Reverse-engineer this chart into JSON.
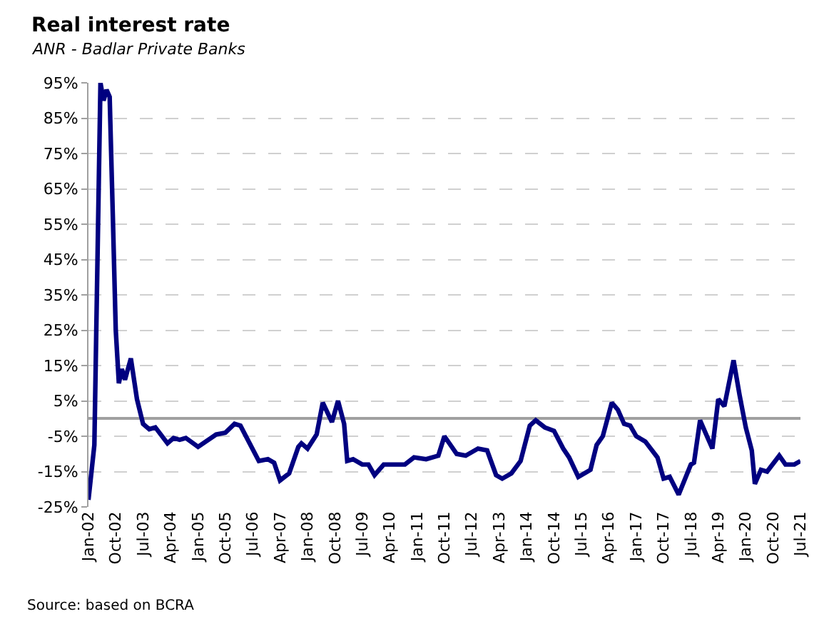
{
  "chart_data": {
    "type": "line",
    "title": "Real interest rate",
    "subtitle": "ANR - Badlar Private Banks",
    "annotations": [
      "Source: based on BCRA"
    ],
    "x": [
      "2002-01",
      "2002-03",
      "2002-05",
      "2002-06",
      "2002-07",
      "2002-08",
      "2002-09",
      "2002-10",
      "2002-11",
      "2002-12",
      "2003-01",
      "2003-03",
      "2003-05",
      "2003-07",
      "2003-09",
      "2003-11",
      "2004-03",
      "2004-05",
      "2004-07",
      "2004-09",
      "2005-01",
      "2005-07",
      "2005-10",
      "2006-01",
      "2006-03",
      "2006-06",
      "2006-09",
      "2006-12",
      "2007-02",
      "2007-04",
      "2007-07",
      "2007-10",
      "2007-11",
      "2008-01",
      "2008-04",
      "2008-06",
      "2008-09",
      "2008-11",
      "2009-01",
      "2009-02",
      "2009-04",
      "2009-07",
      "2009-09",
      "2009-11",
      "2010-02",
      "2010-06",
      "2010-09",
      "2010-12",
      "2011-04",
      "2011-08",
      "2011-10",
      "2012-02",
      "2012-05",
      "2012-09",
      "2012-12",
      "2013-03",
      "2013-05",
      "2013-08",
      "2013-11",
      "2014-02",
      "2014-04",
      "2014-07",
      "2014-10",
      "2015-01",
      "2015-03",
      "2015-06",
      "2015-09",
      "2015-10",
      "2015-12",
      "2016-02",
      "2016-05",
      "2016-07",
      "2016-09",
      "2016-11",
      "2017-01",
      "2017-04",
      "2017-08",
      "2017-10",
      "2017-12",
      "2018-03",
      "2018-07",
      "2018-08",
      "2018-10",
      "2018-12",
      "2019-02",
      "2019-04",
      "2019-06",
      "2019-09",
      "2019-11",
      "2020-01",
      "2020-03",
      "2020-04",
      "2020-06",
      "2020-08",
      "2020-12",
      "2021-02",
      "2021-05",
      "2021-07"
    ],
    "series": [
      {
        "color": "#000080",
        "values": [
          -23,
          -7.5,
          95,
          90,
          93,
          91,
          58,
          25,
          10,
          14,
          11,
          17,
          5.5,
          -1.5,
          -3,
          -2.5,
          -7,
          -5.5,
          -6,
          -5.5,
          -8,
          -4.5,
          -4,
          -1.5,
          -2,
          -7,
          -12,
          -11.5,
          -12.5,
          -17.5,
          -15.5,
          -8,
          -7,
          -8.5,
          -4.5,
          4.5,
          -1,
          5,
          -1.5,
          -12,
          -11.5,
          -13,
          -13,
          -16,
          -13,
          -13,
          -13,
          -11,
          -11.5,
          -10.5,
          -5,
          -10,
          -10.5,
          -8.5,
          -9,
          -16,
          -17,
          -15.5,
          -12,
          -2,
          -0.5,
          -2.5,
          -3.5,
          -8.5,
          -11,
          -16.5,
          -15,
          -14.5,
          -7.5,
          -5,
          4.5,
          2.5,
          -1.5,
          -2,
          -5,
          -6.5,
          -11,
          -17,
          -16.5,
          -21.5,
          -13,
          -12.5,
          -0.5,
          -4.5,
          -8.5,
          5.5,
          3.5,
          16.5,
          6.5,
          -2.5,
          -9,
          -18.5,
          -14.5,
          -15,
          -10.5,
          -13,
          -13,
          -12
        ]
      }
    ],
    "xlim": [
      "2002-01",
      "2021-07"
    ],
    "xticks": [
      {
        "value": "2002-01",
        "label": "Jan-02"
      },
      {
        "value": "2002-10",
        "label": "Oct-02"
      },
      {
        "value": "2003-07",
        "label": "Jul-03"
      },
      {
        "value": "2004-04",
        "label": "Apr-04"
      },
      {
        "value": "2005-01",
        "label": "Jan-05"
      },
      {
        "value": "2005-10",
        "label": "Oct-05"
      },
      {
        "value": "2006-07",
        "label": "Jul-06"
      },
      {
        "value": "2007-04",
        "label": "Apr-07"
      },
      {
        "value": "2008-01",
        "label": "Jan-08"
      },
      {
        "value": "2008-10",
        "label": "Oct-08"
      },
      {
        "value": "2009-07",
        "label": "Jul-09"
      },
      {
        "value": "2010-04",
        "label": "Apr-10"
      },
      {
        "value": "2011-01",
        "label": "Jan-11"
      },
      {
        "value": "2011-10",
        "label": "Oct-11"
      },
      {
        "value": "2012-07",
        "label": "Jul-12"
      },
      {
        "value": "2013-04",
        "label": "Apr-13"
      },
      {
        "value": "2014-01",
        "label": "Jan-14"
      },
      {
        "value": "2014-10",
        "label": "Oct-14"
      },
      {
        "value": "2015-07",
        "label": "Jul-15"
      },
      {
        "value": "2016-04",
        "label": "Apr-16"
      },
      {
        "value": "2017-01",
        "label": "Jan-17"
      },
      {
        "value": "2017-10",
        "label": "Oct-17"
      },
      {
        "value": "2018-07",
        "label": "Jul-18"
      },
      {
        "value": "2019-04",
        "label": "Apr-19"
      },
      {
        "value": "2020-01",
        "label": "Jan-20"
      },
      {
        "value": "2020-10",
        "label": "Oct-20"
      },
      {
        "value": "2021-07",
        "label": "Jul-21"
      }
    ],
    "ylim": [
      -25,
      95
    ],
    "yticks": [
      {
        "value": -25,
        "label": "-25%"
      },
      {
        "value": -15,
        "label": "-15%"
      },
      {
        "value": -5,
        "label": "-5%"
      },
      {
        "value": 5,
        "label": "5%"
      },
      {
        "value": 15,
        "label": "15%"
      },
      {
        "value": 25,
        "label": "25%"
      },
      {
        "value": 35,
        "label": "35%"
      },
      {
        "value": 45,
        "label": "45%"
      },
      {
        "value": 55,
        "label": "55%"
      },
      {
        "value": 65,
        "label": "65%"
      },
      {
        "value": 75,
        "label": "75%"
      },
      {
        "value": 85,
        "label": "85%"
      },
      {
        "value": 95,
        "label": "95%"
      }
    ],
    "grid": "y",
    "marker": "none",
    "line_style": "solid"
  }
}
